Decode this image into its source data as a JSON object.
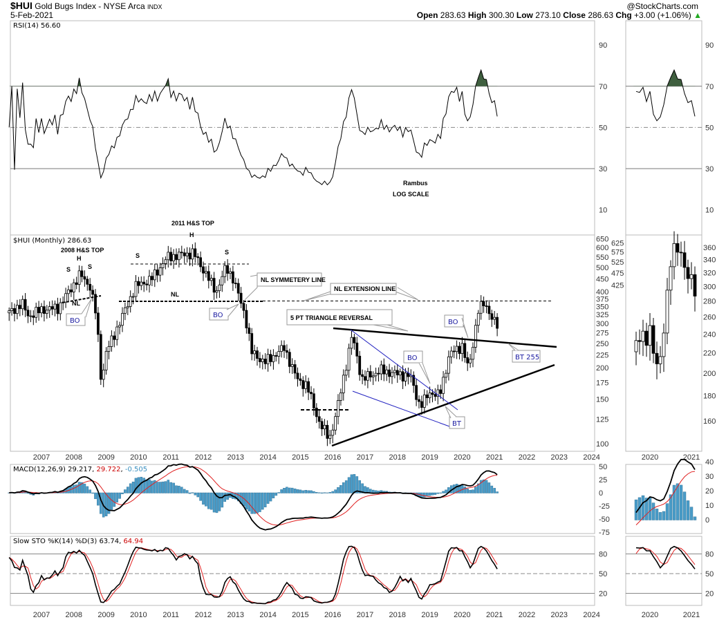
{
  "header": {
    "symbol": "$HUI",
    "name": "Gold Bugs Index - NYSE Arca",
    "exchange": "INDX",
    "date": "5-Feb-2021",
    "copyright": "@StockCharts.com",
    "open_label": "Open",
    "open": "283.63",
    "high_label": "High",
    "high": "300.30",
    "low_label": "Low",
    "low": "273.10",
    "close_label": "Close",
    "close": "286.63",
    "chg_label": "Chg",
    "chg": "+3.00 (+1.06%)",
    "chg_arrow": "▲"
  },
  "annotations": {
    "rsi_legend": "RSI(14) 56.60",
    "price_legend": "$HUI (Monthly) 286.63",
    "top_2011": "2011 H&S TOP",
    "top_2008": "2008 H&S TOP",
    "s": "S",
    "h": "H",
    "nl": "NL",
    "bo": "BO",
    "bt": "BT",
    "bt255": "BT 255",
    "nl_symmetry": "NL SYMMETERY LINE",
    "nl_extension": "NL EXTENSION LINE",
    "triangle": "5 PT TRIANGLE REVERSAL",
    "author": "Rambus",
    "log_scale": "LOG SCALE",
    "macd_label": "MACD(12,26,9)",
    "macd_val": "29.217",
    "macd_sig": "29.722",
    "macd_hist": "-0.505",
    "sto_label": "Slow STO %K(14) %D(3)",
    "sto_k": "63.74",
    "sto_d": "64.94"
  },
  "colors": {
    "candle_down": "#000000",
    "candle_up": "#ffffff",
    "signal": "#e02020",
    "histogram": "#4a9cc8",
    "trend_blue": "#2020c0",
    "rsi_overbought": "#3f5f3f"
  },
  "chart_data": [
    {
      "type": "candlestick",
      "title": "$HUI (Monthly)",
      "scale": "log",
      "ylim": [
        100,
        650
      ],
      "yticks": [
        100,
        125,
        150,
        175,
        200,
        225,
        250,
        275,
        300,
        325,
        350,
        375,
        400,
        425,
        450,
        475,
        500,
        525,
        550,
        575,
        600,
        625,
        650
      ],
      "xticks": [
        "2007",
        "2008",
        "2009",
        "2010",
        "2011",
        "2012",
        "2013",
        "2014",
        "2015",
        "2016",
        "2017",
        "2018",
        "2019",
        "2020",
        "2021",
        "2022",
        "2023",
        "2024"
      ],
      "approx_close_path": [
        [
          2006.0,
          330
        ],
        [
          2006.4,
          360
        ],
        [
          2006.6,
          320
        ],
        [
          2007.0,
          340
        ],
        [
          2007.5,
          345
        ],
        [
          2007.9,
          410
        ],
        [
          2008.2,
          470
        ],
        [
          2008.5,
          420
        ],
        [
          2008.7,
          320
        ],
        [
          2008.85,
          175
        ],
        [
          2009.0,
          230
        ],
        [
          2009.5,
          320
        ],
        [
          2009.9,
          420
        ],
        [
          2010.4,
          450
        ],
        [
          2010.9,
          550
        ],
        [
          2011.3,
          560
        ],
        [
          2011.7,
          570
        ],
        [
          2012.0,
          490
        ],
        [
          2012.4,
          400
        ],
        [
          2012.7,
          500
        ],
        [
          2012.9,
          460
        ],
        [
          2013.3,
          320
        ],
        [
          2013.5,
          230
        ],
        [
          2013.9,
          210
        ],
        [
          2014.5,
          240
        ],
        [
          2014.9,
          180
        ],
        [
          2015.2,
          170
        ],
        [
          2015.6,
          120
        ],
        [
          2015.9,
          105
        ],
        [
          2016.1,
          130
        ],
        [
          2016.6,
          270
        ],
        [
          2016.9,
          180
        ],
        [
          2017.5,
          195
        ],
        [
          2017.9,
          190
        ],
        [
          2018.4,
          185
        ],
        [
          2018.7,
          140
        ],
        [
          2019.0,
          160
        ],
        [
          2019.3,
          155
        ],
        [
          2019.6,
          225
        ],
        [
          2020.0,
          245
        ],
        [
          2020.2,
          195
        ],
        [
          2020.5,
          340
        ],
        [
          2020.7,
          360
        ],
        [
          2021.1,
          286.63
        ]
      ]
    },
    {
      "type": "line",
      "title": "RSI(14)",
      "ylim": [
        0,
        100
      ],
      "yticks": [
        10,
        30,
        50,
        70,
        90
      ],
      "last": 56.6
    },
    {
      "type": "line+bar",
      "title": "MACD(12,26,9)",
      "yticks": [
        -75,
        -50,
        -25,
        0,
        25,
        50
      ],
      "right_yticks": [
        0,
        10,
        20,
        30,
        40
      ],
      "last": {
        "macd": 29.217,
        "signal": 29.722,
        "histogram": -0.505
      }
    },
    {
      "type": "line",
      "title": "Slow STO %K(14) %D(3)",
      "yticks": [
        20,
        50,
        80
      ],
      "last": {
        "k": 63.74,
        "d": 64.94
      }
    },
    {
      "type": "candlestick",
      "title": "inset",
      "yticks": [
        160,
        180,
        200,
        220,
        240,
        260,
        280,
        300,
        320,
        340,
        360
      ],
      "xticks": [
        "2020",
        "2021"
      ]
    }
  ]
}
